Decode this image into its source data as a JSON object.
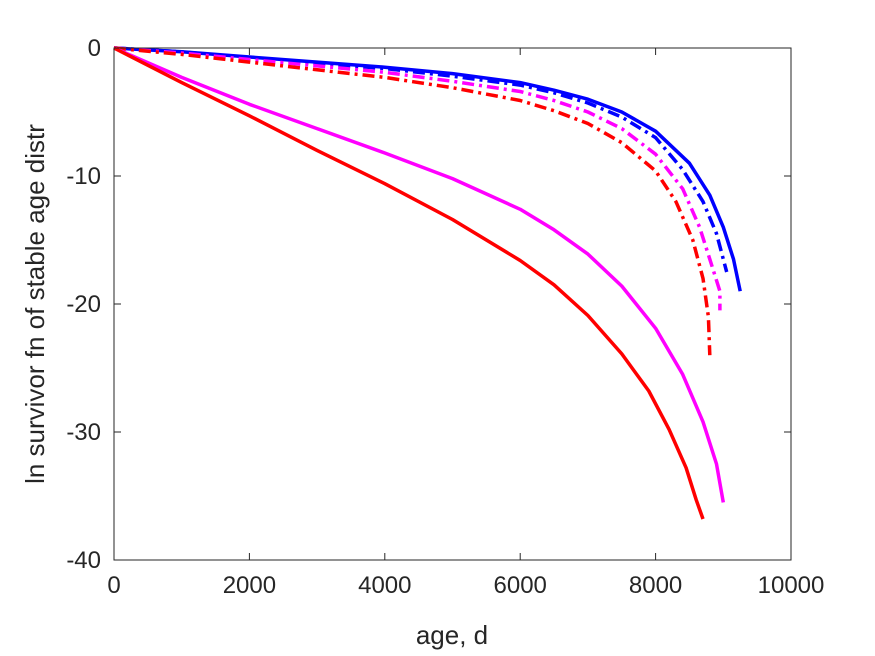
{
  "chart_data": {
    "type": "line",
    "xlabel": "age, d",
    "ylabel": "ln survivor fn of stable age distr",
    "xlim": [
      0,
      10000
    ],
    "ylim": [
      -40,
      0
    ],
    "xticks": [
      0,
      2000,
      4000,
      6000,
      8000,
      10000
    ],
    "yticks": [
      0,
      -10,
      -20,
      -30,
      -40
    ],
    "xtick_labels": [
      "0",
      "2000",
      "4000",
      "6000",
      "8000",
      "10000"
    ],
    "ytick_labels": [
      "0",
      "-10",
      "-20",
      "-30",
      "-40"
    ],
    "grid": false,
    "series": [
      {
        "color": "#0000ff",
        "style": "solid",
        "x": [
          0,
          1000,
          2000,
          3000,
          4000,
          5000,
          6000,
          6500,
          7000,
          7500,
          8000,
          8500,
          8800,
          9000,
          9150,
          9250
        ],
        "y": [
          0,
          -0.3,
          -0.7,
          -1.1,
          -1.5,
          -2.0,
          -2.7,
          -3.3,
          -4.0,
          -5.0,
          -6.5,
          -9.0,
          -11.5,
          -14.0,
          -16.5,
          -19.0
        ]
      },
      {
        "color": "#0000ff",
        "style": "dashdot",
        "x": [
          0,
          1000,
          2000,
          3000,
          4000,
          5000,
          6000,
          6500,
          7000,
          7500,
          8000,
          8400,
          8700,
          8900,
          9050
        ],
        "y": [
          0,
          -0.3,
          -0.8,
          -1.2,
          -1.6,
          -2.2,
          -2.9,
          -3.5,
          -4.3,
          -5.4,
          -7.0,
          -9.5,
          -12.0,
          -14.5,
          -17.5
        ]
      },
      {
        "color": "#ff00ff",
        "style": "dashdot",
        "x": [
          0,
          1000,
          2000,
          3000,
          4000,
          5000,
          6000,
          6500,
          7000,
          7500,
          8000,
          8400,
          8650,
          8800,
          8950,
          8950
        ],
        "y": [
          0,
          -0.4,
          -0.9,
          -1.4,
          -1.9,
          -2.6,
          -3.4,
          -4.1,
          -5.0,
          -6.3,
          -8.3,
          -11.0,
          -14.0,
          -16.5,
          -19.0,
          -20.5
        ]
      },
      {
        "color": "#ff0000",
        "style": "dashdot",
        "x": [
          0,
          1000,
          2000,
          3000,
          4000,
          5000,
          6000,
          6500,
          7000,
          7500,
          8000,
          8300,
          8550,
          8700,
          8780,
          8800
        ],
        "y": [
          0,
          -0.5,
          -1.1,
          -1.7,
          -2.3,
          -3.1,
          -4.1,
          -4.9,
          -5.9,
          -7.4,
          -9.6,
          -12.0,
          -15.0,
          -18.0,
          -21.0,
          -24.0
        ]
      },
      {
        "color": "#ff00ff",
        "style": "solid",
        "x": [
          0,
          1000,
          2000,
          3000,
          4000,
          5000,
          6000,
          6500,
          7000,
          7500,
          8000,
          8400,
          8700,
          8900,
          9000
        ],
        "y": [
          0,
          -2.3,
          -4.4,
          -6.3,
          -8.2,
          -10.2,
          -12.6,
          -14.2,
          -16.1,
          -18.6,
          -21.9,
          -25.5,
          -29.2,
          -32.5,
          -35.5
        ]
      },
      {
        "color": "#ff0000",
        "style": "solid",
        "x": [
          0,
          1000,
          2000,
          3000,
          4000,
          5000,
          6000,
          6500,
          7000,
          7500,
          7900,
          8200,
          8450,
          8600,
          8700
        ],
        "y": [
          0,
          -2.7,
          -5.3,
          -8.0,
          -10.6,
          -13.4,
          -16.6,
          -18.5,
          -20.9,
          -23.9,
          -26.8,
          -29.8,
          -32.8,
          -35.3,
          -36.8
        ]
      }
    ]
  }
}
